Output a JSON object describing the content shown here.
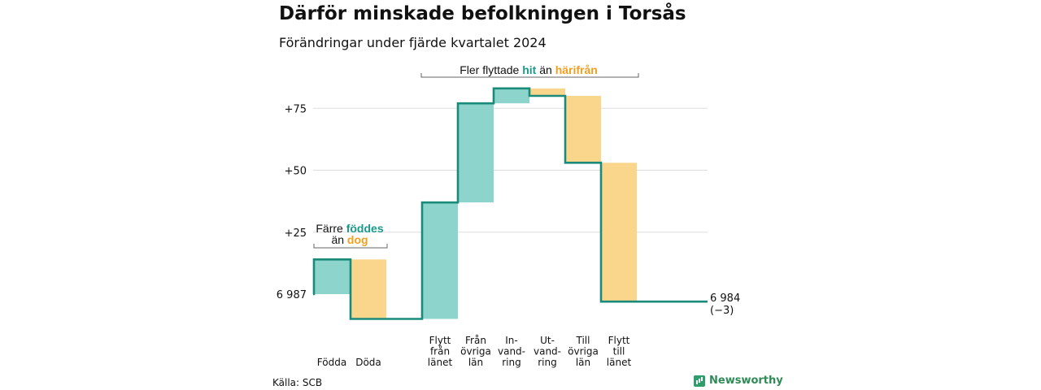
{
  "title": "Därför minskade befolkningen i Torsås",
  "subtitle": "Förändringar under fjärde kvartalet 2024",
  "source": "Källa: SCB",
  "brand": "Newsworthy",
  "colors": {
    "increase": "#8dd5cc",
    "decrease": "#fad68d",
    "line": "#1a8a7a",
    "teal_text": "#1a9a8a",
    "orange_text": "#f0a020",
    "grid": "#dddddd"
  },
  "annotations": {
    "births": {
      "line1_pre": "Färre ",
      "line1_em": "föddes",
      "line2_pre": "än ",
      "line2_em": "dog"
    },
    "moves": {
      "pre": "Fler flyttade ",
      "em1": "hit",
      "mid": " än ",
      "em2": "härifrån"
    }
  },
  "chart_data": {
    "type": "waterfall",
    "title": "Därför minskade befolkningen i Torsås",
    "subtitle": "Förändringar under fjärde kvartalet 2024",
    "baseline": 6987,
    "baseline_label": "6 987",
    "end_label": "6 984",
    "end_change_label": "(−3)",
    "y_ticks": [
      {
        "value": 25,
        "label": "+25"
      },
      {
        "value": 50,
        "label": "+50"
      },
      {
        "value": 75,
        "label": "+75"
      }
    ],
    "ylim": [
      -12,
      88
    ],
    "steps": [
      {
        "label_lines": [
          "Födda"
        ],
        "change": 14,
        "start": 0,
        "end": 14,
        "type": "increase"
      },
      {
        "label_lines": [
          "Döda"
        ],
        "change": -24,
        "start": 14,
        "end": -10,
        "type": "decrease"
      },
      {
        "label_lines": [
          "Flytt",
          "från",
          "länet"
        ],
        "change": 47,
        "start": -10,
        "end": 37,
        "type": "increase"
      },
      {
        "label_lines": [
          "Från",
          "övriga",
          "län"
        ],
        "change": 40,
        "start": 37,
        "end": 77,
        "type": "increase"
      },
      {
        "label_lines": [
          "In-",
          "vand-",
          "ring"
        ],
        "change": 6,
        "start": 77,
        "end": 83,
        "type": "increase"
      },
      {
        "label_lines": [
          "Ut-",
          "vand-",
          "ring"
        ],
        "change": -3,
        "start": 83,
        "end": 80,
        "type": "decrease"
      },
      {
        "label_lines": [
          "Till",
          "övriga",
          "län"
        ],
        "change": -27,
        "start": 80,
        "end": 53,
        "type": "decrease"
      },
      {
        "label_lines": [
          "Flytt",
          "till",
          "länet"
        ],
        "change": -56,
        "start": 53,
        "end": -3,
        "type": "decrease"
      }
    ],
    "final": -3
  }
}
